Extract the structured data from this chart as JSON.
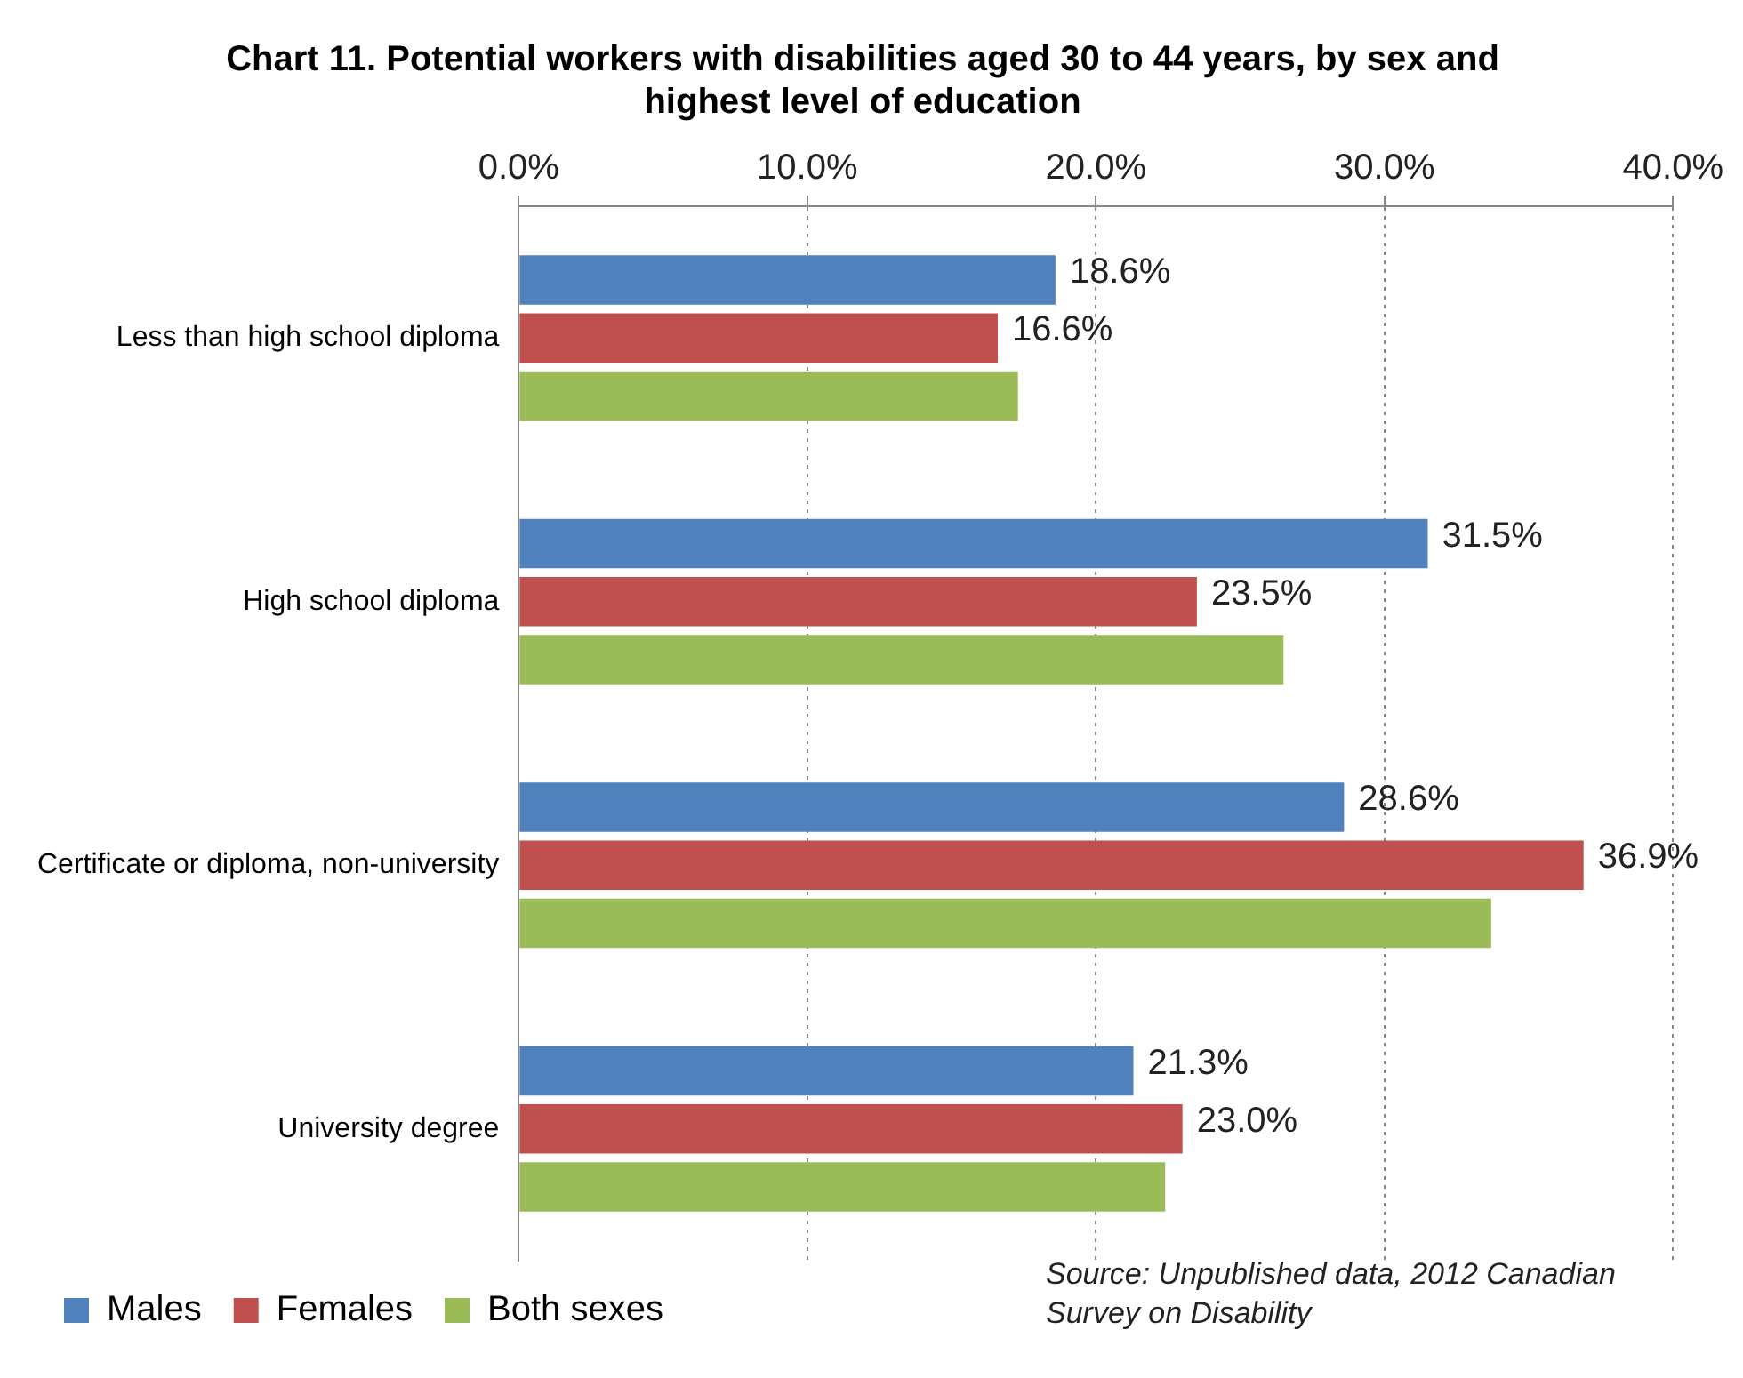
{
  "chart_data": {
    "type": "bar",
    "orientation": "horizontal",
    "title": "Chart 11. Potential workers with disabilities aged 30 to 44 years, by sex and highest level of education",
    "categories": [
      "Less than high school diploma",
      "High school diploma",
      "Certificate or diploma, non-university",
      "University degree"
    ],
    "series": [
      {
        "name": "Males",
        "color": "#4f81bd",
        "values": [
          18.6,
          31.5,
          28.6,
          21.3
        ],
        "value_labels": [
          "18.6%",
          "31.5%",
          "28.6%",
          "21.3%"
        ]
      },
      {
        "name": "Females",
        "color": "#c0504d",
        "values": [
          16.6,
          23.5,
          36.9,
          23.0
        ],
        "value_labels": [
          "16.6%",
          "23.5%",
          "36.9%",
          "23.0%"
        ]
      },
      {
        "name": "Both sexes",
        "color": "#9bbb59",
        "values": [
          17.3,
          26.5,
          33.7,
          22.4
        ],
        "value_labels": [
          null,
          null,
          null,
          null
        ]
      }
    ],
    "xlim": [
      0,
      40
    ],
    "xticks": [
      {
        "value": 0,
        "label": "0.0%"
      },
      {
        "value": 10,
        "label": "10.0%"
      },
      {
        "value": 20,
        "label": "20.0%"
      },
      {
        "value": 30,
        "label": "30.0%"
      },
      {
        "value": 40,
        "label": "40.0%"
      }
    ],
    "grid": "x",
    "legend": "bottom left",
    "annotations": [
      "Source: Unpublished data, 2012 Canadian Survey on Disability"
    ]
  }
}
